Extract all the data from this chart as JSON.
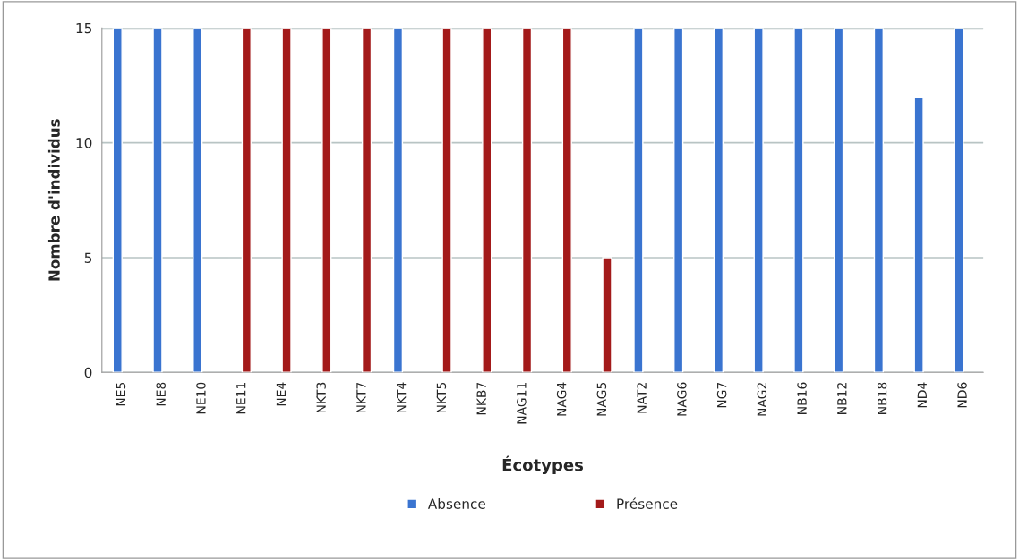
{
  "chart_data": {
    "type": "bar",
    "xlabel": "Écotypes",
    "ylabel": "Nombre d'individus",
    "categories": [
      "NE5",
      "NE8",
      "NE10",
      "NE11",
      "NE4",
      "NKT3",
      "NKT7",
      "NKT4",
      "NKT5",
      "NKB7",
      "NAG11",
      "NAG4",
      "NAG5",
      "NAT2",
      "NAG6",
      "NG7",
      "NAG2",
      "NB16",
      "NB12",
      "NB18",
      "ND4",
      "ND6"
    ],
    "series": [
      {
        "name": "Absence",
        "color": "#3a74d0",
        "values": [
          15,
          15,
          15,
          null,
          null,
          null,
          null,
          15,
          null,
          null,
          null,
          null,
          null,
          15,
          15,
          15,
          15,
          15,
          15,
          15,
          12,
          15
        ]
      },
      {
        "name": "Présence",
        "color": "#a31a1a",
        "values": [
          null,
          null,
          null,
          15,
          15,
          15,
          15,
          null,
          15,
          15,
          15,
          15,
          5,
          null,
          null,
          null,
          null,
          null,
          null,
          null,
          null,
          null
        ]
      }
    ],
    "ylim": [
      0,
      15
    ],
    "yticks": [
      0,
      5,
      10,
      15
    ],
    "grid": "y",
    "legend": "bottom"
  }
}
